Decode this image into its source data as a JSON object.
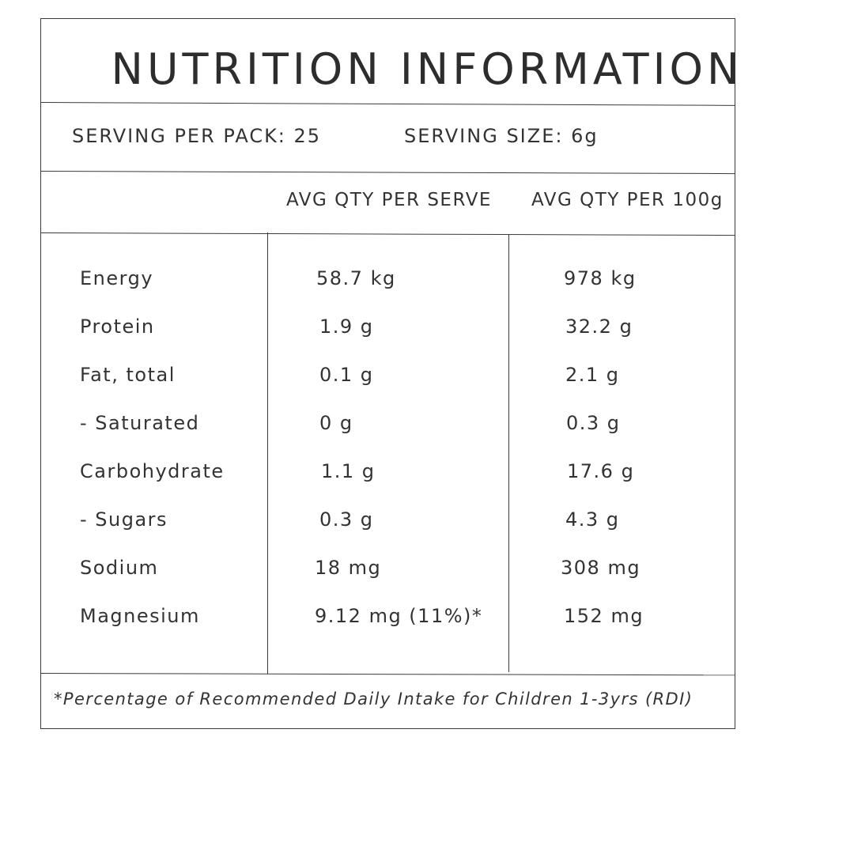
{
  "title": "NUTRITION INFORMATION",
  "serving": {
    "per_pack": "SERVING PER PACK: 25",
    "size": "SERVING SIZE: 6g"
  },
  "columns": {
    "per_serve": "AVG QTY PER SERVE",
    "per_100g": "AVG QTY PER 100g"
  },
  "rows": [
    {
      "name": "Energy",
      "per_serve": "58.7 kg",
      "per_100g": "978 kg"
    },
    {
      "name": "Protein",
      "per_serve": "1.9 g",
      "per_100g": "32.2 g"
    },
    {
      "name": "Fat, total",
      "per_serve": "0.1 g",
      "per_100g": "2.1 g"
    },
    {
      "name": "- Saturated",
      "per_serve": "0 g",
      "per_100g": "0.3 g"
    },
    {
      "name": "Carbohydrate",
      "per_serve": "1.1 g",
      "per_100g": "17.6 g"
    },
    {
      "name": "- Sugars",
      "per_serve": "0.3 g",
      "per_100g": "4.3 g"
    },
    {
      "name": "Sodium",
      "per_serve": "18 mg",
      "per_100g": "308 mg"
    },
    {
      "name": "Magnesium",
      "per_serve": "9.12 mg (11%)*",
      "per_100g": "152 mg"
    }
  ],
  "footnote": "*Percentage of Recommended Daily Intake for Children 1-3yrs (RDI)"
}
